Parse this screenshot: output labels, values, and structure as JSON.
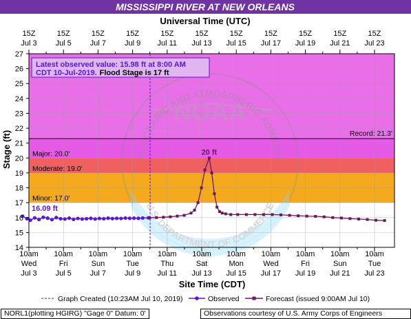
{
  "title": "MISSISSIPPI RIVER AT NEW ORLEANS",
  "top_axis_title": "Universal Time (UTC)",
  "bottom_axis_title": "Site Time (CDT)",
  "y_axis_title": "Stage (ft)",
  "colors": {
    "title_bg": "#6f33a3",
    "plot_bg": "#ffffff",
    "minor_band": "#f5aa1e",
    "moderate_band": "#f16060",
    "major_band": "#e55ae5",
    "above_major_band": "#e96fe9",
    "observed": "#5a17d6",
    "forecast": "#6a185c",
    "info_text": "#5a17d6",
    "info_bg": "#dfb6ef"
  },
  "info_box": {
    "line1": "Latest observed value: 15.98 ft at 8:00 AM",
    "line2_prefix": "CDT 10-Jul-2019.",
    "line2_suffix": "Flood Stage is 17 ft"
  },
  "footer": {
    "left": "NORL1(plotting HGIRG) \"Gage 0\" Datum: 0'",
    "right": "Observations courtesy of U.S. Army Corps of Engineers"
  },
  "legend": {
    "created": "Graph Created (10:23AM Jul 10, 2019)",
    "observed": "Observed",
    "forecast": "Forecast (issued 9:00AM Jul 10)"
  },
  "watermark_text": {
    "center": "NOAA",
    "top_arc": "NATIONAL OCEANIC AND ATMOSPHERIC ADMINISTRATION",
    "bottom_arc": "U.S. DEPARTMENT OF COMMERCE"
  },
  "chart_data": {
    "type": "line",
    "x_unit": "days since Jul 3 00:00 CDT",
    "ylim": [
      14,
      27
    ],
    "y_ticks": [
      14,
      15,
      16,
      17,
      18,
      19,
      20,
      21,
      22,
      23,
      24,
      25,
      26,
      27
    ],
    "bottom_ticks": [
      {
        "time": "10am",
        "day": "Wed",
        "date": "Jul 3"
      },
      {
        "time": "10am",
        "day": "Fri",
        "date": "Jul 5"
      },
      {
        "time": "10am",
        "day": "Sun",
        "date": "Jul 7"
      },
      {
        "time": "10am",
        "day": "Tue",
        "date": "Jul 9"
      },
      {
        "time": "10am",
        "day": "Thu",
        "date": "Jul 11"
      },
      {
        "time": "10am",
        "day": "Sat",
        "date": "Jul 13"
      },
      {
        "time": "10am",
        "day": "Mon",
        "date": "Jul 15"
      },
      {
        "time": "10am",
        "day": "Wed",
        "date": "Jul 17"
      },
      {
        "time": "10am",
        "day": "Fri",
        "date": "Jul 19"
      },
      {
        "time": "10am",
        "day": "Sun",
        "date": "Jul 21"
      },
      {
        "time": "10am",
        "day": "Tue",
        "date": "Jul 23"
      }
    ],
    "top_ticks": [
      {
        "time": "15Z",
        "date": "Jul 3"
      },
      {
        "time": "15Z",
        "date": "Jul 5"
      },
      {
        "time": "15Z",
        "date": "Jul 7"
      },
      {
        "time": "15Z",
        "date": "Jul 9"
      },
      {
        "time": "15Z",
        "date": "Jul 11"
      },
      {
        "time": "15Z",
        "date": "Jul 13"
      },
      {
        "time": "15Z",
        "date": "Jul 15"
      },
      {
        "time": "15Z",
        "date": "Jul 17"
      },
      {
        "time": "15Z",
        "date": "Jul 19"
      },
      {
        "time": "15Z",
        "date": "Jul 21"
      },
      {
        "time": "15Z",
        "date": "Jul 23"
      }
    ],
    "bands": [
      {
        "name": "minor",
        "from": 17,
        "to": 19,
        "label": "Minor: 17.0'"
      },
      {
        "name": "moderate",
        "from": 19,
        "to": 20,
        "label": "Moderate: 19.0'"
      },
      {
        "name": "major",
        "from": 20,
        "to": 21.3,
        "label": "Major: 20.0'"
      },
      {
        "name": "above_major",
        "from": 21.3,
        "to": 27,
        "label": ""
      }
    ],
    "record": {
      "value": 21.3,
      "label": "Record: 21.3'"
    },
    "graph_created_x": 7.43,
    "observed_first_label": "16.09 ft",
    "observed": {
      "x": [
        0.05,
        0.3,
        0.5,
        0.75,
        1.0,
        1.25,
        1.5,
        1.75,
        2.0,
        2.25,
        2.5,
        2.75,
        3.0,
        3.25,
        3.5,
        3.75,
        4.0,
        4.25,
        4.5,
        4.75,
        5.0,
        5.25,
        5.5,
        5.75,
        6.0,
        6.25,
        6.5,
        6.75,
        7.0,
        7.33
      ],
      "y": [
        16.09,
        15.92,
        15.82,
        15.98,
        15.87,
        16.02,
        15.96,
        15.86,
        16.0,
        15.92,
        15.9,
        15.96,
        15.88,
        15.94,
        15.9,
        15.92,
        15.95,
        15.9,
        15.94,
        15.92,
        15.96,
        15.93,
        15.95,
        15.94,
        15.97,
        15.95,
        15.96,
        15.95,
        15.97,
        15.98
      ]
    },
    "forecast_peak_label": "20 ft",
    "forecast": {
      "x": [
        7.4,
        7.8,
        8.2,
        8.6,
        9.0,
        9.4,
        9.8,
        10.0,
        10.2,
        10.4,
        10.6,
        10.85,
        11.0,
        11.15,
        11.3,
        11.45,
        11.6,
        11.8,
        12.1,
        12.5,
        13.0,
        13.5,
        14.0,
        14.5,
        15.0,
        15.5,
        16.0,
        16.5,
        17.0,
        17.5,
        18.0,
        18.5,
        19.0,
        19.5,
        20.0,
        20.5,
        21.0
      ],
      "y": [
        15.98,
        16.0,
        16.02,
        16.05,
        16.1,
        16.15,
        16.3,
        16.5,
        17.0,
        18.0,
        19.2,
        20.0,
        19.0,
        17.6,
        16.7,
        16.4,
        16.3,
        16.25,
        16.2,
        16.2,
        16.2,
        16.2,
        16.2,
        16.2,
        16.18,
        16.15,
        16.12,
        16.1,
        16.08,
        16.05,
        16.0,
        15.97,
        15.93,
        15.9,
        15.87,
        15.82,
        15.8
      ]
    }
  }
}
